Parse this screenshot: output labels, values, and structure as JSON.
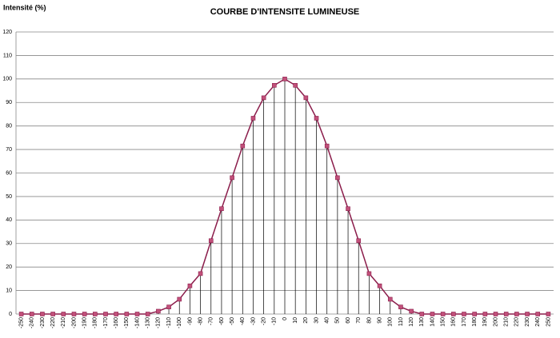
{
  "chart_data": {
    "type": "line",
    "title": "COURBE D'INTENSITE LUMINEUSE",
    "y_label": "Intensité (%)",
    "x": [
      -250,
      -240,
      -230,
      -220,
      -210,
      -200,
      -190,
      -180,
      -170,
      -160,
      -150,
      -140,
      -130,
      -120,
      -110,
      -100,
      -90,
      -80,
      -70,
      -60,
      -50,
      -40,
      -30,
      -20,
      -10,
      0,
      10,
      20,
      30,
      40,
      50,
      60,
      70,
      80,
      90,
      100,
      110,
      120,
      130,
      140,
      150,
      160,
      170,
      180,
      190,
      200,
      210,
      220,
      230,
      240,
      250
    ],
    "series": [
      {
        "color": "#8b1d4b",
        "marker_color": "#c2507a",
        "values": [
          0,
          0,
          0,
          0,
          0,
          0,
          0,
          0,
          0,
          0,
          0,
          0,
          0,
          1.2,
          3,
          6.3,
          12,
          17.2,
          31.2,
          44.8,
          58,
          71.5,
          83.3,
          92,
          97.3,
          100,
          97.3,
          92,
          83.3,
          71.5,
          58,
          44.8,
          31.2,
          17.2,
          12,
          6.3,
          3,
          1.2,
          0,
          0,
          0,
          0,
          0,
          0,
          0,
          0,
          0,
          0,
          0,
          0,
          0
        ]
      }
    ],
    "xlim": [
      -255,
      255
    ],
    "ylim": [
      0,
      120
    ],
    "yticks": [
      0,
      10,
      20,
      30,
      40,
      50,
      60,
      70,
      80,
      90,
      100,
      110,
      120
    ],
    "grid": true,
    "drop_lines": true
  }
}
